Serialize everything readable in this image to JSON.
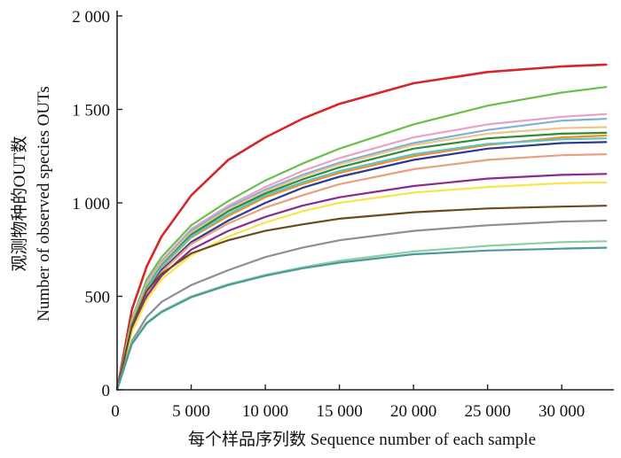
{
  "chart_data": {
    "type": "line",
    "title": "",
    "xlabel": "每个样品序列数 Sequence number of each sample",
    "ylabel_lines": [
      "观测物种的OUT数",
      "Number of observed species OUTs"
    ],
    "xlim": [
      0,
      34000
    ],
    "ylim": [
      0,
      2000
    ],
    "x_ticks": [
      0,
      5000,
      10000,
      15000,
      20000,
      25000,
      30000
    ],
    "x_tick_labels": [
      "0",
      "5 000",
      "10 000",
      "15 000",
      "20 000",
      "25 000",
      "30 000"
    ],
    "y_ticks": [
      0,
      500,
      1000,
      1500,
      2000
    ],
    "y_tick_labels": [
      "0",
      "500",
      "1 000",
      "1 500",
      "2 000"
    ],
    "grid": false,
    "legend": "none",
    "x": [
      0,
      1000,
      2000,
      3000,
      5000,
      7500,
      10000,
      12500,
      15000,
      20000,
      25000,
      30000,
      33000
    ],
    "series": [
      {
        "color": "#d62728",
        "values": [
          0,
          430,
          660,
          820,
          1040,
          1230,
          1350,
          1450,
          1530,
          1640,
          1700,
          1730,
          1740
        ]
      },
      {
        "color": "#6abf4b",
        "values": [
          0,
          380,
          590,
          710,
          880,
          1010,
          1120,
          1210,
          1290,
          1420,
          1520,
          1590,
          1620
        ]
      },
      {
        "color": "#e6a3c8",
        "values": [
          0,
          370,
          570,
          690,
          860,
          985,
          1085,
          1170,
          1240,
          1350,
          1420,
          1460,
          1475
        ]
      },
      {
        "color": "#7fb2d8",
        "values": [
          0,
          360,
          560,
          680,
          850,
          975,
          1070,
          1150,
          1215,
          1320,
          1390,
          1440,
          1450
        ]
      },
      {
        "color": "#f0c48a",
        "values": [
          0,
          360,
          555,
          675,
          840,
          965,
          1060,
          1140,
          1205,
          1310,
          1370,
          1400,
          1405
        ]
      },
      {
        "color": "#2e8b3a",
        "values": [
          0,
          350,
          545,
          665,
          830,
          955,
          1050,
          1125,
          1190,
          1290,
          1345,
          1370,
          1375
        ]
      },
      {
        "color": "#ff8c1a",
        "values": [
          0,
          340,
          535,
          655,
          815,
          930,
          1030,
          1100,
          1160,
          1250,
          1310,
          1350,
          1360
        ]
      },
      {
        "color": "#5bc4c8",
        "values": [
          0,
          345,
          540,
          660,
          820,
          940,
          1040,
          1110,
          1170,
          1260,
          1315,
          1340,
          1345
        ]
      },
      {
        "color": "#2b3990",
        "values": [
          0,
          330,
          520,
          640,
          790,
          905,
          1000,
          1080,
          1140,
          1230,
          1290,
          1320,
          1325
        ]
      },
      {
        "color": "#e8a080",
        "values": [
          0,
          330,
          515,
          630,
          780,
          890,
          975,
          1040,
          1100,
          1180,
          1230,
          1255,
          1260
        ]
      },
      {
        "color": "#8b2a8b",
        "values": [
          0,
          320,
          500,
          610,
          750,
          850,
          925,
          985,
          1030,
          1090,
          1130,
          1150,
          1155
        ]
      },
      {
        "color": "#f5e64a",
        "values": [
          0,
          310,
          480,
          590,
          720,
          820,
          895,
          955,
          1000,
          1055,
          1085,
          1105,
          1110
        ]
      },
      {
        "color": "#6b4a1e",
        "values": [
          0,
          340,
          530,
          620,
          730,
          800,
          850,
          885,
          915,
          950,
          970,
          980,
          985
        ]
      },
      {
        "color": "#8a8f99",
        "values": [
          0,
          260,
          390,
          470,
          560,
          640,
          710,
          760,
          800,
          850,
          880,
          900,
          905
        ]
      },
      {
        "color": "#8fcfa8",
        "values": [
          0,
          250,
          360,
          420,
          500,
          565,
          615,
          655,
          690,
          740,
          770,
          790,
          795
        ]
      },
      {
        "color": "#4a9a9a",
        "values": [
          0,
          245,
          355,
          415,
          495,
          560,
          610,
          650,
          680,
          725,
          745,
          755,
          760
        ]
      }
    ]
  }
}
